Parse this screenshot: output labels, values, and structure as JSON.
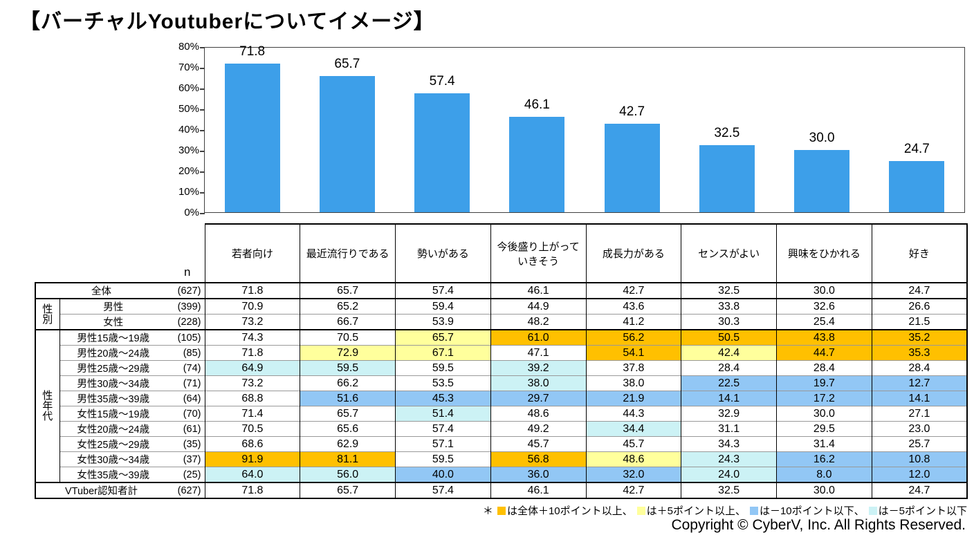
{
  "title": "【バーチャルYoutuberについてイメージ】",
  "chart_data": {
    "type": "bar",
    "title": "バーチャルYoutuberについてイメージ",
    "categories": [
      "若者向け",
      "最近流行りである",
      "勢いがある",
      "今後盛り上がっていきそう",
      "成長力がある",
      "センスがよい",
      "興味をひかれる",
      "好き"
    ],
    "values": [
      71.8,
      65.7,
      57.4,
      46.1,
      42.7,
      32.5,
      30.0,
      24.7
    ],
    "value_labels": [
      "71.8",
      "65.7",
      "57.4",
      "46.1",
      "42.7",
      "32.5",
      "30.0",
      "24.7"
    ],
    "xlabel": "",
    "ylabel": "",
    "ylim": [
      0,
      80
    ],
    "ytick_labels": [
      "80%",
      "70%",
      "60%",
      "50%",
      "40%",
      "30%",
      "20%",
      "10%",
      "0%"
    ],
    "grid": false,
    "legend_position": "none",
    "bar_color": "#3D9FE9"
  },
  "table": {
    "n_label": "n",
    "columns": [
      "若者向け",
      "最近流行りである",
      "勢いがある",
      "今後盛り上がって\nいきそう",
      "成長力がある",
      "センスがよい",
      "興味をひかれる",
      "好き"
    ],
    "row_groups": [
      {
        "label": "",
        "rows": [
          {
            "label": "全体",
            "n": "(627)",
            "values": [
              "71.8",
              "65.7",
              "57.4",
              "46.1",
              "42.7",
              "32.5",
              "30.0",
              "24.7"
            ],
            "hl": [
              "",
              "",
              "",
              "",
              "",
              "",
              "",
              ""
            ]
          }
        ]
      },
      {
        "label": "性別",
        "rows": [
          {
            "label": "男性",
            "n": "(399)",
            "values": [
              "70.9",
              "65.2",
              "59.4",
              "44.9",
              "43.6",
              "33.8",
              "32.6",
              "26.6"
            ],
            "hl": [
              "",
              "",
              "",
              "",
              "",
              "",
              "",
              ""
            ]
          },
          {
            "label": "女性",
            "n": "(228)",
            "values": [
              "73.2",
              "66.7",
              "53.9",
              "48.2",
              "41.2",
              "30.3",
              "25.4",
              "21.5"
            ],
            "hl": [
              "",
              "",
              "",
              "",
              "",
              "",
              "",
              ""
            ]
          }
        ]
      },
      {
        "label": "性年代",
        "rows": [
          {
            "label": "男性15歳〜19歳",
            "n": "(105)",
            "values": [
              "74.3",
              "70.5",
              "65.7",
              "61.0",
              "56.2",
              "50.5",
              "43.8",
              "35.2"
            ],
            "hl": [
              "",
              "",
              "y",
              "o",
              "o",
              "o",
              "o",
              "o"
            ]
          },
          {
            "label": "男性20歳〜24歳",
            "n": "(85)",
            "values": [
              "71.8",
              "72.9",
              "67.1",
              "47.1",
              "54.1",
              "42.4",
              "44.7",
              "35.3"
            ],
            "hl": [
              "",
              "y",
              "y",
              "",
              "o",
              "y",
              "o",
              "o"
            ]
          },
          {
            "label": "男性25歳〜29歳",
            "n": "(74)",
            "values": [
              "64.9",
              "59.5",
              "59.5",
              "39.2",
              "37.8",
              "28.4",
              "28.4",
              "28.4"
            ],
            "hl": [
              "c",
              "c",
              "",
              "c",
              "",
              "",
              "",
              ""
            ]
          },
          {
            "label": "男性30歳〜34歳",
            "n": "(71)",
            "values": [
              "73.2",
              "66.2",
              "53.5",
              "38.0",
              "38.0",
              "22.5",
              "19.7",
              "12.7"
            ],
            "hl": [
              "",
              "",
              "",
              "c",
              "",
              "b",
              "b",
              "b"
            ]
          },
          {
            "label": "男性35歳〜39歳",
            "n": "(64)",
            "values": [
              "68.8",
              "51.6",
              "45.3",
              "29.7",
              "21.9",
              "14.1",
              "17.2",
              "14.1"
            ],
            "hl": [
              "",
              "b",
              "b",
              "b",
              "b",
              "b",
              "b",
              "b"
            ]
          },
          {
            "label": "女性15歳〜19歳",
            "n": "(70)",
            "values": [
              "71.4",
              "65.7",
              "51.4",
              "48.6",
              "44.3",
              "32.9",
              "30.0",
              "27.1"
            ],
            "hl": [
              "",
              "",
              "c",
              "",
              "",
              "",
              "",
              ""
            ]
          },
          {
            "label": "女性20歳〜24歳",
            "n": "(61)",
            "values": [
              "70.5",
              "65.6",
              "57.4",
              "49.2",
              "34.4",
              "31.1",
              "29.5",
              "23.0"
            ],
            "hl": [
              "",
              "",
              "",
              "",
              "c",
              "",
              "",
              ""
            ]
          },
          {
            "label": "女性25歳〜29歳",
            "n": "(35)",
            "values": [
              "68.6",
              "62.9",
              "57.1",
              "45.7",
              "45.7",
              "34.3",
              "31.4",
              "25.7"
            ],
            "hl": [
              "",
              "",
              "",
              "",
              "",
              "",
              "",
              ""
            ]
          },
          {
            "label": "女性30歳〜34歳",
            "n": "(37)",
            "values": [
              "91.9",
              "81.1",
              "59.5",
              "56.8",
              "48.6",
              "24.3",
              "16.2",
              "10.8"
            ],
            "hl": [
              "o",
              "o",
              "",
              "o",
              "y",
              "c",
              "b",
              "b"
            ]
          },
          {
            "label": "女性35歳〜39歳",
            "n": "(25)",
            "values": [
              "64.0",
              "56.0",
              "40.0",
              "36.0",
              "32.0",
              "24.0",
              "8.0",
              "12.0"
            ],
            "hl": [
              "c",
              "c",
              "b",
              "b",
              "b",
              "c",
              "b",
              "b"
            ]
          }
        ]
      },
      {
        "label": "",
        "rows": [
          {
            "label": "VTuber認知者計",
            "n": "(627)",
            "values": [
              "71.8",
              "65.7",
              "57.4",
              "46.1",
              "42.7",
              "32.5",
              "30.0",
              "24.7"
            ],
            "hl": [
              "",
              "",
              "",
              "",
              "",
              "",
              "",
              ""
            ]
          }
        ]
      }
    ]
  },
  "highlight_colors": {
    "o": "#FFC000",
    "y": "#FFFF9C",
    "b": "#92C7F5",
    "c": "#CCF2F5"
  },
  "legend": {
    "star": "＊",
    "items": [
      {
        "key": "o",
        "text": "は全体＋10ポイント以上、"
      },
      {
        "key": "y",
        "text": "は＋5ポイント以上、"
      },
      {
        "key": "b",
        "text": "は－10ポイント以下、"
      },
      {
        "key": "c",
        "text": "は－5ポイント以下"
      }
    ]
  },
  "copyright": "Copyright © CyberV, Inc. All Rights Reserved."
}
